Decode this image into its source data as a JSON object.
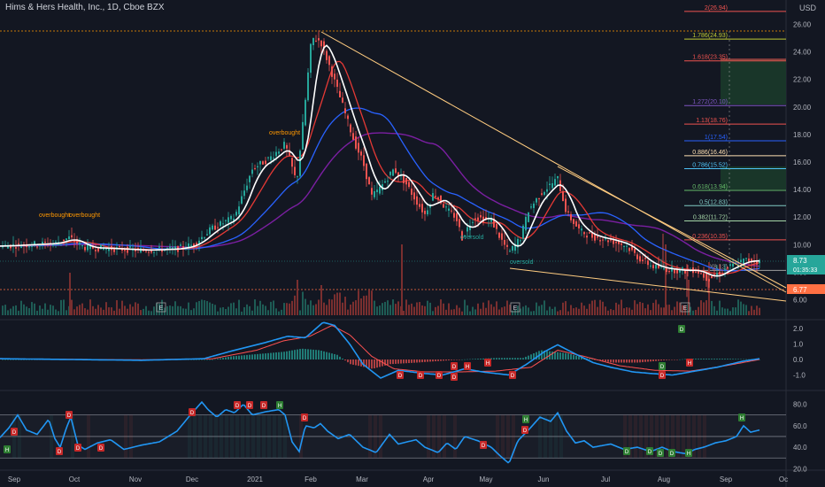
{
  "header": {
    "title": "Hims & Hers Health, Inc., 1D, Cboe BZX",
    "currency": "USD"
  },
  "colors": {
    "background": "#131722",
    "up": "#26a69a",
    "down": "#ef5350",
    "sma_white": "#ffffff",
    "ema_red": "#e53935",
    "ema_blue": "#2962ff",
    "ema_purple": "#7b1fa2",
    "macd": "#2196f3",
    "signal": "#ff5252",
    "rsi": "#2196f3",
    "trendline": "#ffcc80"
  },
  "chart_data": [
    {
      "type": "candlestick",
      "title": "Hims & Hers Health, Inc., 1D, Cboe BZX",
      "xlabel": "",
      "ylabel": "USD",
      "x_ticks": [
        "Sep",
        "Oct",
        "Nov",
        "Dec",
        "2021",
        "Feb",
        "Mar",
        "Apr",
        "May",
        "Jun",
        "Jul",
        "Aug",
        "Sep",
        "Oc"
      ],
      "y_ticks": [
        "6.00",
        "8.00",
        "10.00",
        "12.00",
        "14.00",
        "16.00",
        "18.00",
        "20.00",
        "22.00",
        "24.00",
        "26.00"
      ],
      "ylim": [
        5,
        27.5
      ],
      "price_path_anchors": [
        [
          0,
          9.9
        ],
        [
          30,
          10.0
        ],
        [
          62,
          10.1
        ],
        [
          78,
          10.5
        ],
        [
          95,
          9.8
        ],
        [
          130,
          9.7
        ],
        [
          160,
          9.6
        ],
        [
          200,
          9.7
        ],
        [
          218,
          10.0
        ],
        [
          240,
          11.2
        ],
        [
          265,
          12.0
        ],
        [
          285,
          15.5
        ],
        [
          305,
          16.3
        ],
        [
          322,
          17.3
        ],
        [
          335,
          14.5
        ],
        [
          345,
          20.5
        ],
        [
          352,
          25.0
        ],
        [
          362,
          24.8
        ],
        [
          372,
          23.0
        ],
        [
          385,
          20.5
        ],
        [
          400,
          17.5
        ],
        [
          410,
          16.0
        ],
        [
          420,
          13.5
        ],
        [
          428,
          14.0
        ],
        [
          445,
          15.5
        ],
        [
          458,
          14.5
        ],
        [
          470,
          13.2
        ],
        [
          480,
          12.2
        ],
        [
          490,
          13.8
        ],
        [
          505,
          12.5
        ],
        [
          515,
          12.0
        ],
        [
          522,
          10.5
        ],
        [
          535,
          12.0
        ],
        [
          555,
          11.8
        ],
        [
          565,
          10.5
        ],
        [
          575,
          9.4
        ],
        [
          588,
          10.5
        ],
        [
          597,
          12.5
        ],
        [
          612,
          13.8
        ],
        [
          630,
          14.8
        ],
        [
          640,
          12.3
        ],
        [
          655,
          11.0
        ],
        [
          668,
          10.6
        ],
        [
          690,
          10.3
        ],
        [
          708,
          9.9
        ],
        [
          722,
          9.0
        ],
        [
          738,
          8.4
        ],
        [
          755,
          8.2
        ],
        [
          775,
          8.1
        ],
        [
          785,
          8.2
        ],
        [
          800,
          7.5
        ],
        [
          810,
          7.9
        ],
        [
          825,
          8.4
        ],
        [
          842,
          8.9
        ],
        [
          858,
          8.73
        ]
      ],
      "current_price": "8.73",
      "countdown": "01:35:33",
      "low_marker": "6.77",
      "fib_levels": [
        {
          "label": "2(26.94)",
          "value": 26.94,
          "color": "#ef5350"
        },
        {
          "label": "1.786(24.93)",
          "value": 24.93,
          "color": "#c0ca33"
        },
        {
          "label": "1.618(23.35)",
          "value": 23.35,
          "color": "#ef5350"
        },
        {
          "label": "1.272(20.10)",
          "value": 20.1,
          "color": "#7e57c2"
        },
        {
          "label": "1.13(18.76)",
          "value": 18.76,
          "color": "#ef5350"
        },
        {
          "label": "1(17.54)",
          "value": 17.54,
          "color": "#2962ff"
        },
        {
          "label": "0.886(16.46)",
          "value": 16.46,
          "color": "#ffe0b2"
        },
        {
          "label": "0.786(15.52)",
          "value": 15.52,
          "color": "#4fc3f7"
        },
        {
          "label": "0.618(13.94)",
          "value": 13.94,
          "color": "#66bb6a"
        },
        {
          "label": "0.5(12.83)",
          "value": 12.83,
          "color": "#80cbc4"
        },
        {
          "label": "0.382(11.72)",
          "value": 11.72,
          "color": "#a5d6a7"
        },
        {
          "label": "0.236(10.35)",
          "value": 10.35,
          "color": "#ef5350"
        },
        {
          "label": "0(8.13)",
          "value": 8.13,
          "color": "#9e9e9e"
        }
      ],
      "annotations": [
        {
          "text": "overbought",
          "color": "#ff9800"
        },
        {
          "text": "overbought",
          "color": "#ff9800"
        },
        {
          "text": "overbought",
          "color": "#ff9800"
        },
        {
          "text": "oversold",
          "color": "#26a69a"
        },
        {
          "text": "oversold",
          "color": "#26a69a"
        }
      ],
      "earnings_markers": [
        "E",
        "E",
        "E"
      ]
    },
    {
      "type": "line",
      "title": "",
      "series": [
        {
          "values_anchor_count": 30
        },
        {
          "values_anchor_count": 30
        }
      ],
      "y_ticks": [
        "2.0",
        "1.0",
        "0.0",
        "-1.0"
      ],
      "ylim": [
        -1.6,
        2.7
      ],
      "hist_anchors": [
        [
          0,
          0
        ],
        [
          240,
          0
        ],
        [
          260,
          0.2
        ],
        [
          300,
          0.4
        ],
        [
          320,
          0.5
        ],
        [
          340,
          0.7
        ],
        [
          360,
          0.6
        ],
        [
          380,
          0.3
        ],
        [
          395,
          -0.3
        ],
        [
          420,
          -0.6
        ],
        [
          440,
          -0.3
        ],
        [
          470,
          -0.2
        ],
        [
          520,
          0
        ],
        [
          560,
          0.1
        ],
        [
          590,
          0.1
        ],
        [
          610,
          0.6
        ],
        [
          640,
          0.4
        ],
        [
          660,
          0.1
        ],
        [
          690,
          -0.2
        ],
        [
          720,
          -0.2
        ],
        [
          750,
          -0.05
        ],
        [
          780,
          0.05
        ],
        [
          820,
          0.05
        ],
        [
          858,
          0
        ]
      ],
      "macd_anchors": [
        [
          0,
          0.05
        ],
        [
          80,
          0.0
        ],
        [
          160,
          -0.05
        ],
        [
          230,
          0.05
        ],
        [
          265,
          0.6
        ],
        [
          300,
          1.1
        ],
        [
          325,
          1.5
        ],
        [
          345,
          1.4
        ],
        [
          365,
          2.4
        ],
        [
          378,
          2.2
        ],
        [
          395,
          1.0
        ],
        [
          410,
          -0.3
        ],
        [
          430,
          -1.2
        ],
        [
          450,
          -0.7
        ],
        [
          480,
          -0.9
        ],
        [
          500,
          -1.0
        ],
        [
          525,
          -0.6
        ],
        [
          545,
          -0.8
        ],
        [
          575,
          -1.0
        ],
        [
          595,
          -0.3
        ],
        [
          615,
          0.5
        ],
        [
          630,
          0.95
        ],
        [
          645,
          0.5
        ],
        [
          670,
          -0.2
        ],
        [
          690,
          -0.5
        ],
        [
          715,
          -0.8
        ],
        [
          735,
          -0.9
        ],
        [
          760,
          -1.0
        ],
        [
          780,
          -0.8
        ],
        [
          810,
          -0.5
        ],
        [
          840,
          -0.1
        ],
        [
          858,
          0.05
        ]
      ],
      "signal_anchors": [
        [
          0,
          0.04
        ],
        [
          160,
          -0.02
        ],
        [
          240,
          0.05
        ],
        [
          290,
          0.6
        ],
        [
          320,
          1.2
        ],
        [
          350,
          1.5
        ],
        [
          375,
          2.2
        ],
        [
          395,
          1.6
        ],
        [
          420,
          0.2
        ],
        [
          445,
          -0.6
        ],
        [
          480,
          -0.8
        ],
        [
          520,
          -0.8
        ],
        [
          560,
          -0.75
        ],
        [
          600,
          -0.5
        ],
        [
          630,
          0.6
        ],
        [
          660,
          0.2
        ],
        [
          700,
          -0.4
        ],
        [
          740,
          -0.7
        ],
        [
          780,
          -0.75
        ],
        [
          820,
          -0.4
        ],
        [
          858,
          0.0
        ]
      ],
      "signal_labels": [
        "D",
        "D",
        "D",
        "D",
        "D",
        "H",
        "H",
        "D",
        "D",
        "D",
        "H",
        "D"
      ]
    },
    {
      "type": "line",
      "title": "",
      "y_ticks": [
        "80.0",
        "60.0",
        "40.0",
        "20.0"
      ],
      "ylim": [
        18,
        88
      ],
      "band_levels": [
        70,
        50,
        30
      ],
      "rsi_anchors": [
        [
          0,
          49
        ],
        [
          10,
          58
        ],
        [
          20,
          70
        ],
        [
          30,
          56
        ],
        [
          42,
          52
        ],
        [
          55,
          66
        ],
        [
          62,
          48
        ],
        [
          68,
          40
        ],
        [
          75,
          58
        ],
        [
          80,
          68
        ],
        [
          88,
          42
        ],
        [
          96,
          38
        ],
        [
          110,
          44
        ],
        [
          125,
          47
        ],
        [
          140,
          38
        ],
        [
          160,
          42
        ],
        [
          180,
          45
        ],
        [
          200,
          55
        ],
        [
          215,
          70
        ],
        [
          228,
          82
        ],
        [
          235,
          75
        ],
        [
          245,
          68
        ],
        [
          255,
          75
        ],
        [
          265,
          72
        ],
        [
          275,
          80
        ],
        [
          285,
          70
        ],
        [
          300,
          73
        ],
        [
          315,
          75
        ],
        [
          322,
          70
        ],
        [
          330,
          45
        ],
        [
          338,
          36
        ],
        [
          345,
          60
        ],
        [
          355,
          58
        ],
        [
          362,
          62
        ],
        [
          370,
          55
        ],
        [
          382,
          48
        ],
        [
          395,
          52
        ],
        [
          410,
          40
        ],
        [
          425,
          35
        ],
        [
          440,
          52
        ],
        [
          450,
          43
        ],
        [
          470,
          47
        ],
        [
          480,
          40
        ],
        [
          495,
          35
        ],
        [
          505,
          44
        ],
        [
          515,
          38
        ],
        [
          525,
          50
        ],
        [
          540,
          46
        ],
        [
          555,
          40
        ],
        [
          565,
          32
        ],
        [
          575,
          25
        ],
        [
          585,
          46
        ],
        [
          597,
          56
        ],
        [
          610,
          68
        ],
        [
          622,
          64
        ],
        [
          630,
          72
        ],
        [
          640,
          55
        ],
        [
          650,
          44
        ],
        [
          660,
          46
        ],
        [
          670,
          40
        ],
        [
          690,
          43
        ],
        [
          705,
          38
        ],
        [
          720,
          40
        ],
        [
          735,
          36
        ],
        [
          748,
          40
        ],
        [
          760,
          36
        ],
        [
          775,
          34
        ],
        [
          785,
          38
        ],
        [
          795,
          40
        ],
        [
          808,
          44
        ],
        [
          820,
          46
        ],
        [
          832,
          50
        ],
        [
          840,
          60
        ],
        [
          848,
          54
        ],
        [
          858,
          56
        ]
      ],
      "signal_labels": [
        "D",
        "D",
        "H",
        "D",
        "D",
        "D",
        "D",
        "D",
        "D",
        "D",
        "H",
        "D",
        "H",
        "D",
        "D",
        "D",
        "D",
        "D",
        "D",
        "H",
        "H"
      ]
    }
  ]
}
